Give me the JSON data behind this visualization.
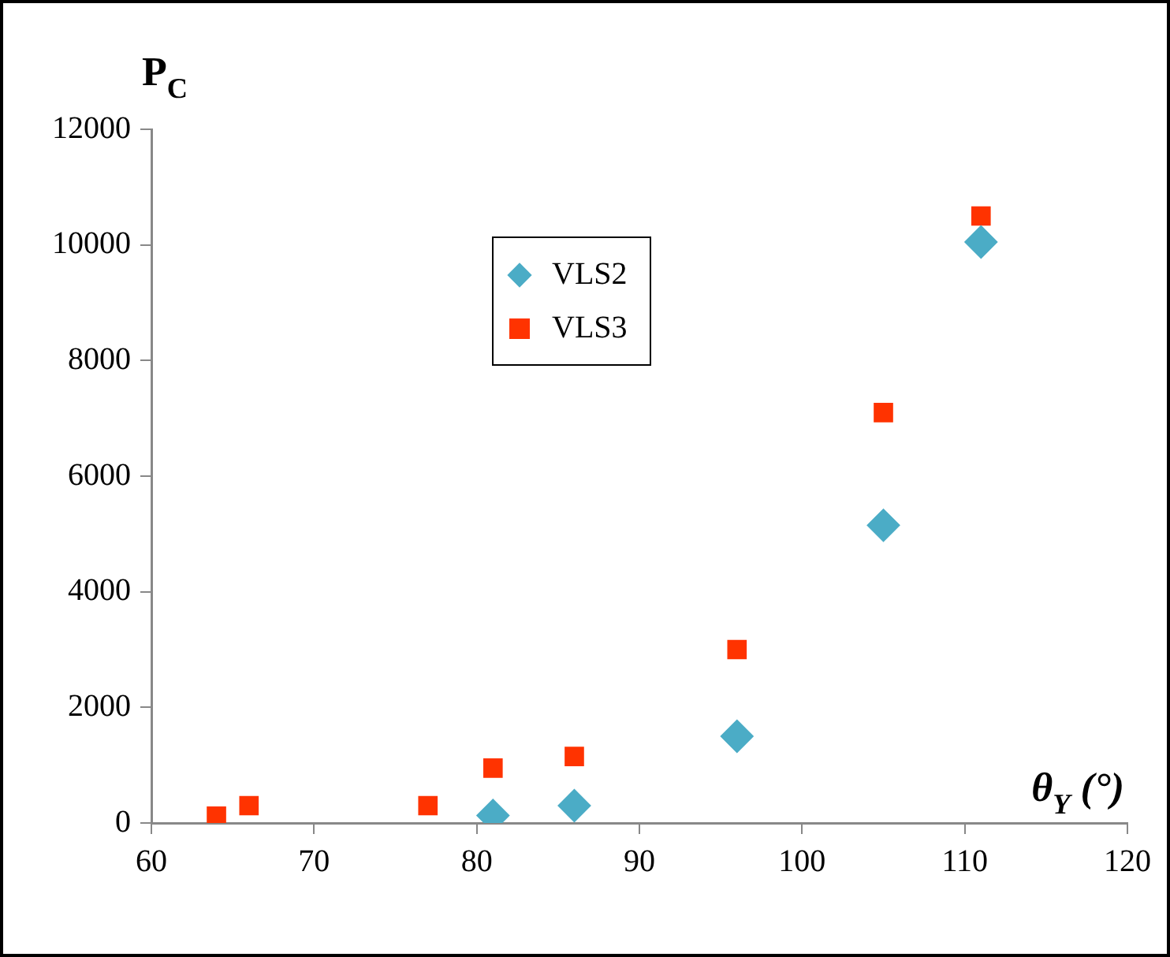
{
  "chart_data": {
    "type": "scatter",
    "xlabel": "θ$_{Y}$ (°)",
    "ylabel": "P$_{C}$",
    "xlim": [
      60,
      120
    ],
    "xticks": [
      60,
      70,
      80,
      90,
      100,
      110,
      120
    ],
    "ylim": [
      0,
      12000
    ],
    "yticks": [
      0,
      2000,
      4000,
      6000,
      8000,
      10000,
      12000
    ],
    "grid": false,
    "legend": "top left",
    "series": [
      {
        "name": "VLS2",
        "color": "#4bacc6",
        "marker": "diamond",
        "x": [
          81,
          86,
          96,
          105,
          111
        ],
        "values": [
          130,
          300,
          1500,
          5150,
          10050
        ]
      },
      {
        "name": "VLS3",
        "color": "#ff3300",
        "marker": "square",
        "x": [
          64,
          66,
          77,
          81,
          86,
          96,
          105,
          111
        ],
        "values": [
          120,
          300,
          300,
          950,
          1150,
          3000,
          7100,
          10500
        ]
      }
    ]
  }
}
